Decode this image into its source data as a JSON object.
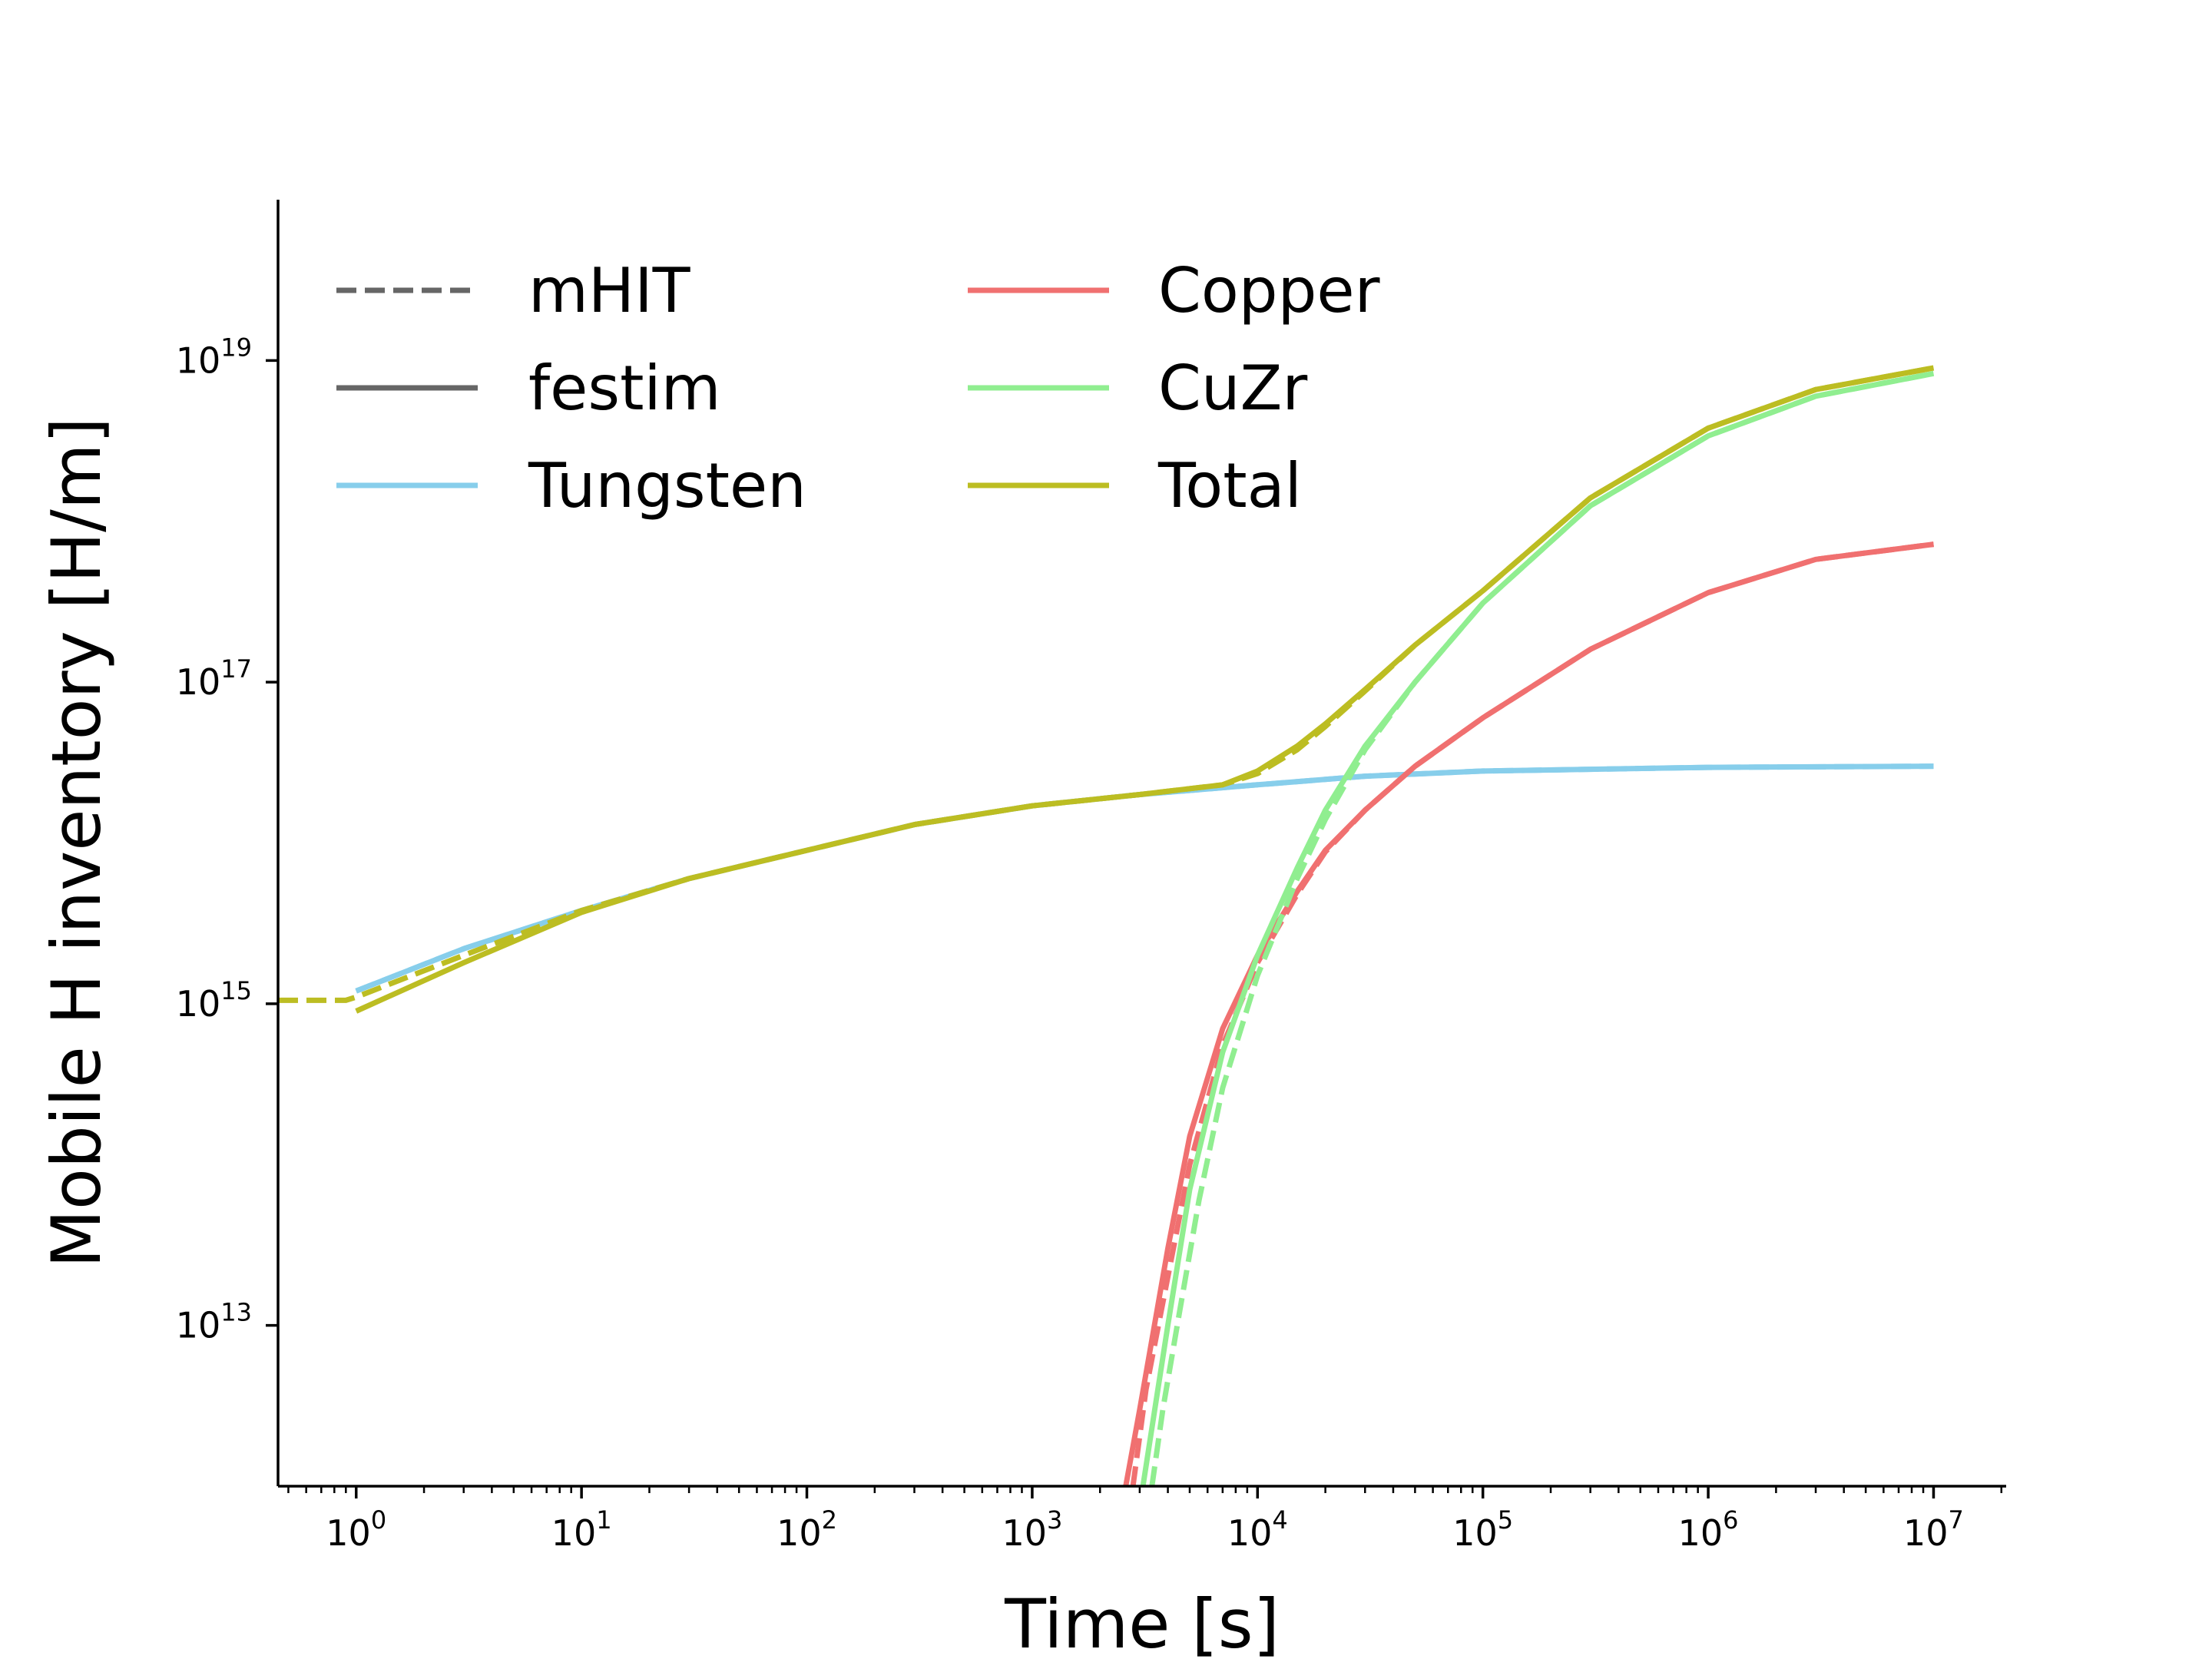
{
  "chart_data": {
    "type": "line",
    "title": "",
    "xlabel": "Time [s]",
    "ylabel": "Mobile H inventory [H/m]",
    "xscale": "log",
    "yscale": "log",
    "xlim": [
      0.45,
      21000000.0
    ],
    "ylim": [
      1000000000000.0,
      1e+20
    ],
    "grid": false,
    "legend_position": "top-left",
    "x_ticks": [
      {
        "value": 1,
        "base": "10",
        "exp": "0"
      },
      {
        "value": 10,
        "base": "10",
        "exp": "1"
      },
      {
        "value": 100,
        "base": "10",
        "exp": "2"
      },
      {
        "value": 1000,
        "base": "10",
        "exp": "3"
      },
      {
        "value": 10000,
        "base": "10",
        "exp": "4"
      },
      {
        "value": 100000,
        "base": "10",
        "exp": "5"
      },
      {
        "value": 1000000,
        "base": "10",
        "exp": "6"
      },
      {
        "value": 10000000,
        "base": "10",
        "exp": "7"
      }
    ],
    "y_ticks": [
      {
        "value": 10000000000000.0,
        "base": "10",
        "exp": "13"
      },
      {
        "value": 1000000000000000.0,
        "base": "10",
        "exp": "15"
      },
      {
        "value": 1e+17,
        "base": "10",
        "exp": "17"
      },
      {
        "value": 1e+19,
        "base": "10",
        "exp": "19"
      }
    ],
    "legend": [
      {
        "label": "mHIT",
        "color": "#666666",
        "dash": true
      },
      {
        "label": "festim",
        "color": "#666666",
        "dash": false
      },
      {
        "label": "Tungsten",
        "color": "#87ceeb",
        "dash": false
      },
      {
        "label": "Copper",
        "color": "#f07070",
        "dash": false
      },
      {
        "label": "CuZr",
        "color": "#90ee90",
        "dash": false
      },
      {
        "label": "Total",
        "color": "#bcbd22",
        "dash": false
      }
    ],
    "series": [
      {
        "name": "Tungsten (festim)",
        "color": "#87ceeb",
        "dash": false,
        "x": [
          1,
          3,
          10,
          30,
          100,
          300,
          1000,
          3000,
          10000,
          30000,
          100000,
          1000000,
          10000000
        ],
        "y": [
          1200000000000000.0,
          2200000000000000.0,
          3800000000000000.0,
          6000000000000000.0,
          9000000000000000.0,
          1.3e+16,
          1.7e+16,
          2e+16,
          2.3e+16,
          2.6e+16,
          2.8e+16,
          2.95e+16,
          3e+16
        ]
      },
      {
        "name": "Tungsten (mHIT)",
        "color": "#87ceeb",
        "dash": true,
        "x": [
          1,
          3,
          10,
          30,
          100,
          300,
          1000,
          3000,
          10000,
          30000,
          100000,
          1000000,
          10000000
        ],
        "y": [
          1200000000000000.0,
          2200000000000000.0,
          3800000000000000.0,
          6000000000000000.0,
          9000000000000000.0,
          1.3e+16,
          1.7e+16,
          2e+16,
          2.3e+16,
          2.6e+16,
          2.8e+16,
          2.95e+16,
          3e+16
        ]
      },
      {
        "name": "Copper (festim)",
        "color": "#f07070",
        "dash": false,
        "x": [
          2600,
          3000,
          4000,
          5000,
          7000,
          10000,
          15000,
          20000,
          30000,
          50000,
          100000,
          300000,
          1000000,
          3000000,
          10000000
        ],
        "y": [
          1000000000000.0,
          3000000000000.0,
          30000000000000.0,
          150000000000000.0,
          700000000000000.0,
          2000000000000000.0,
          5000000000000000.0,
          9000000000000000.0,
          1.6e+16,
          3e+16,
          6e+16,
          1.6e+17,
          3.6e+17,
          5.8e+17,
          7.2e+17
        ]
      },
      {
        "name": "Copper (mHIT)",
        "color": "#f07070",
        "dash": true,
        "x": [
          2800,
          3200,
          4000,
          5000,
          7000,
          10000,
          15000,
          20000,
          30000,
          50000,
          100000,
          300000,
          1000000,
          3000000,
          10000000
        ],
        "y": [
          1000000000000.0,
          4000000000000.0,
          20000000000000.0,
          100000000000000.0,
          550000000000000.0,
          1800000000000000.0,
          4800000000000000.0,
          8800000000000000.0,
          1.6e+16,
          3e+16,
          6e+16,
          1.6e+17,
          3.6e+17,
          5.8e+17,
          7.2e+17
        ]
      },
      {
        "name": "CuZr (festim)",
        "color": "#90ee90",
        "dash": false,
        "x": [
          3100,
          3500,
          4000,
          5000,
          7000,
          10000,
          15000,
          20000,
          30000,
          50000,
          100000,
          300000,
          1000000,
          3000000,
          10000000
        ],
        "y": [
          1000000000000.0,
          3000000000000.0,
          10000000000000.0,
          70000000000000.0,
          500000000000000.0,
          2000000000000000.0,
          7000000000000000.0,
          1.6e+16,
          4e+16,
          1e+17,
          3.1e+17,
          1.25e+18,
          3.4e+18,
          6e+18,
          8.3e+18
        ]
      },
      {
        "name": "CuZr (mHIT)",
        "color": "#90ee90",
        "dash": true,
        "x": [
          3400,
          3800,
          4500,
          5500,
          7000,
          10000,
          15000,
          20000,
          30000,
          50000,
          100000,
          300000,
          1000000,
          3000000,
          10000000
        ],
        "y": [
          1000000000000.0,
          3000000000000.0,
          12000000000000.0,
          60000000000000.0,
          300000000000000.0,
          1500000000000000.0,
          6000000000000000.0,
          1.4e+16,
          3.8e+16,
          1e+17,
          3.1e+17,
          1.25e+18,
          3.4e+18,
          6e+18,
          8.3e+18
        ]
      },
      {
        "name": "Total (festim)",
        "color": "#bcbd22",
        "dash": false,
        "x": [
          1,
          3,
          10,
          30,
          100,
          300,
          1000,
          3000,
          7000,
          10000,
          15000,
          20000,
          30000,
          50000,
          100000,
          300000,
          1000000,
          3000000,
          10000000
        ],
        "y": [
          900000000000000.0,
          1800000000000000.0,
          3700000000000000.0,
          6000000000000000.0,
          9000000000000000.0,
          1.3e+16,
          1.7e+16,
          2e+16,
          2.3e+16,
          2.8e+16,
          4e+16,
          5.5e+16,
          9e+16,
          1.7e+17,
          3.7e+17,
          1.4e+18,
          3.8e+18,
          6.6e+18,
          9e+18
        ]
      },
      {
        "name": "Total (mHIT)",
        "color": "#bcbd22",
        "dash": true,
        "x": [
          0.45,
          0.9,
          1,
          3,
          10,
          30,
          100,
          300,
          1000,
          3000,
          7000,
          10000,
          15000,
          20000,
          30000,
          50000,
          100000,
          300000,
          1000000,
          3000000,
          10000000
        ],
        "y": [
          1050000000000000.0,
          1050000000000000.0,
          1100000000000000.0,
          2000000000000000.0,
          3800000000000000.0,
          6000000000000000.0,
          9000000000000000.0,
          1.3e+16,
          1.7e+16,
          2e+16,
          2.3e+16,
          2.7e+16,
          3.8e+16,
          5.3e+16,
          8.8e+16,
          1.7e+17,
          3.7e+17,
          1.4e+18,
          3.8e+18,
          6.6e+18,
          9e+18
        ]
      }
    ]
  }
}
